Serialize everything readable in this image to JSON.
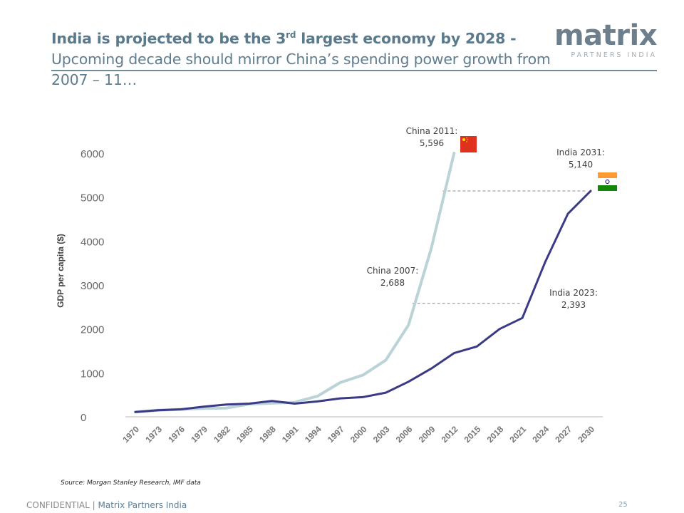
{
  "header": {
    "title_bold_pre": "India is projected to be the 3",
    "title_sup": "rd",
    "title_bold_post": " largest economy by 2028 -",
    "title_regular": " Upcoming decade should mirror China’s spending power growth from 2007 – 11…",
    "logo_word": "matrix",
    "logo_sub": "PARTNERS INDIA"
  },
  "chart_data": {
    "type": "line",
    "title": "",
    "xlabel": "",
    "ylabel": "GDP per capita ($)",
    "ylim": [
      0,
      6000
    ],
    "yticks": [
      0,
      1000,
      2000,
      3000,
      4000,
      5000,
      6000
    ],
    "grid": false,
    "legend": "none",
    "categories": [
      "1970",
      "1973",
      "1976",
      "1979",
      "1982",
      "1985",
      "1988",
      "1991",
      "1994",
      "1997",
      "2000",
      "2003",
      "2006",
      "2009",
      "2012",
      "2015",
      "2018",
      "2021",
      "2024",
      "2027",
      "2030"
    ],
    "series": [
      {
        "name": "China",
        "color": "#b9d3d6",
        "values": [
          110,
          150,
          170,
          190,
          200,
          290,
          310,
          330,
          470,
          780,
          950,
          1290,
          2090,
          3840,
          6000,
          null,
          null,
          null,
          null,
          null,
          null
        ]
      },
      {
        "name": "India",
        "color": "#3b3a86",
        "values": [
          110,
          150,
          170,
          230,
          280,
          300,
          360,
          300,
          350,
          420,
          450,
          550,
          800,
          1100,
          1450,
          1600,
          2000,
          2250,
          3520,
          4620,
          5140
        ]
      }
    ],
    "annotations": [
      {
        "id": "china2011",
        "line1": "China 2011:",
        "line2": "5,596"
      },
      {
        "id": "india2031",
        "line1": "India 2031:",
        "line2": "5,140"
      },
      {
        "id": "china2007",
        "line1": "China 2007:",
        "line2": "2,688"
      },
      {
        "id": "india2023",
        "line1": "India 2023:",
        "line2": "2,393"
      }
    ],
    "reference_lines": [
      {
        "name": "upper",
        "value": 5140,
        "from_year": 2010.5,
        "to_year": 2029.5
      },
      {
        "name": "lower",
        "value": 2580,
        "from_year": 2006.5,
        "to_year": 2021
      }
    ]
  },
  "flags": {
    "china_icon": "china-flag-icon",
    "india_icon": "india-flag-icon"
  },
  "source": "Source:  Morgan Stanley Research, IMF data",
  "footer": {
    "confidential": "CONFIDENTIAL | ",
    "brand": "Matrix Partners India",
    "page": "25"
  }
}
